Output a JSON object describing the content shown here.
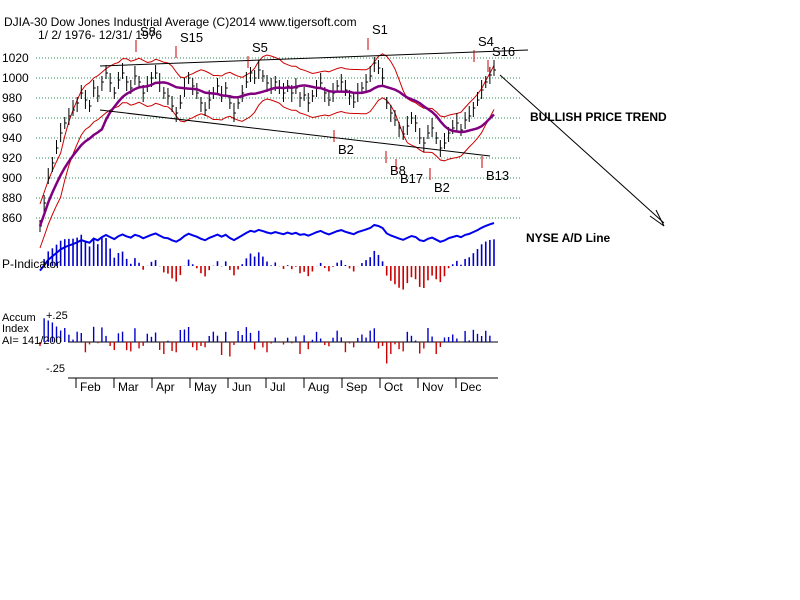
{
  "chart_data": {
    "type": "line",
    "title": "DJIA-30  Dow Jones Industrial Average   (C)2014 www.tigersoft.com",
    "subtitle": "1/ 2/ 1976- 12/31/ 1976",
    "ylim": [
      850,
      1040
    ],
    "yticks": [
      860,
      880,
      900,
      920,
      940,
      960,
      980,
      1000,
      1020
    ],
    "grid": true,
    "months": [
      "Feb",
      "Mar",
      "Apr",
      "May",
      "Jun",
      "Jul",
      "Aug",
      "Sep",
      "Oct",
      "Nov",
      "Dec"
    ],
    "djia_closes": [
      852,
      875,
      900,
      915,
      930,
      945,
      955,
      962,
      968,
      975,
      985,
      978,
      972,
      990,
      982,
      996,
      1005,
      995,
      985,
      998,
      1005,
      996,
      990,
      1002,
      996,
      985,
      992,
      1000,
      1005,
      995,
      985,
      982,
      972,
      965,
      975,
      990,
      1000,
      992,
      985,
      975,
      968,
      978,
      985,
      992,
      982,
      990,
      975,
      965,
      975,
      985,
      996,
      1005,
      1000,
      1008,
      1002,
      995,
      990,
      996,
      990,
      985,
      992,
      985,
      990,
      980,
      983,
      975,
      982,
      990,
      995,
      985,
      978,
      985,
      992,
      996,
      988,
      982,
      976,
      985,
      990,
      996,
      1002,
      1015,
      1010,
      1000,
      975,
      965,
      958,
      950,
      944,
      952,
      960,
      955,
      940,
      935,
      945,
      950,
      940,
      930,
      935,
      945,
      950,
      955,
      948,
      958,
      962,
      970,
      978,
      988,
      996,
      1003,
      1008
    ],
    "series": [
      {
        "name": "",
        "color": "#800080"
      },
      {
        "name": "",
        "color": "#cc0000"
      },
      {
        "name": "NYSE A/D Line",
        "color": "#0000ee"
      },
      {
        "name": "P-Indicator",
        "color": "#0000cc"
      },
      {
        "name": "Accum Index",
        "color": "#0000cc"
      }
    ],
    "signals": [
      {
        "label": "S8",
        "type": "sell"
      },
      {
        "label": "S15",
        "type": "sell"
      },
      {
        "label": "S5",
        "type": "sell"
      },
      {
        "label": "S1",
        "type": "sell"
      },
      {
        "label": "S4",
        "type": "sell"
      },
      {
        "label": "S16",
        "type": "sell"
      },
      {
        "label": "B2",
        "type": "buy"
      },
      {
        "label": "B8",
        "type": "buy"
      },
      {
        "label": "B17",
        "type": "buy"
      },
      {
        "label": "B2",
        "type": "buy"
      },
      {
        "label": "B13",
        "type": "buy"
      }
    ],
    "annotations": {
      "trend": "BULLISH PRICE TREND",
      "ad_line": "NYSE A/D Line",
      "p_indicator": "P-Indicator",
      "accum_label": "Accum",
      "index_label": "Index",
      "ai_reading": "AI= 141/200",
      "accum_top": "+.25",
      "accum_bottom": "-.25"
    }
  }
}
